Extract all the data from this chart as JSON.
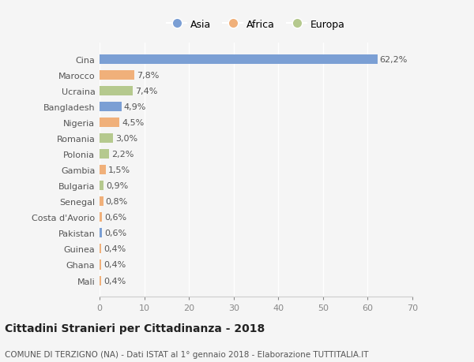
{
  "categories": [
    "Cina",
    "Marocco",
    "Ucraina",
    "Bangladesh",
    "Nigeria",
    "Romania",
    "Polonia",
    "Gambia",
    "Bulgaria",
    "Senegal",
    "Costa d'Avorio",
    "Pakistan",
    "Guinea",
    "Ghana",
    "Mali"
  ],
  "values": [
    62.2,
    7.8,
    7.4,
    4.9,
    4.5,
    3.0,
    2.2,
    1.5,
    0.9,
    0.8,
    0.6,
    0.6,
    0.4,
    0.4,
    0.4
  ],
  "labels": [
    "62,2%",
    "7,8%",
    "7,4%",
    "4,9%",
    "4,5%",
    "3,0%",
    "2,2%",
    "1,5%",
    "0,9%",
    "0,8%",
    "0,6%",
    "0,6%",
    "0,4%",
    "0,4%",
    "0,4%"
  ],
  "colors": [
    "#7b9fd4",
    "#f0b07a",
    "#b5c98e",
    "#7b9fd4",
    "#f0b07a",
    "#b5c98e",
    "#b5c98e",
    "#f0b07a",
    "#b5c98e",
    "#f0b07a",
    "#f0b07a",
    "#7b9fd4",
    "#f0b07a",
    "#f0b07a",
    "#f0b07a"
  ],
  "legend_labels": [
    "Asia",
    "Africa",
    "Europa"
  ],
  "legend_colors": [
    "#7b9fd4",
    "#f0b07a",
    "#b5c98e"
  ],
  "title": "Cittadini Stranieri per Cittadinanza - 2018",
  "subtitle": "COMUNE DI TERZIGNO (NA) - Dati ISTAT al 1° gennaio 2018 - Elaborazione TUTTITALIA.IT",
  "xlim": [
    0,
    70
  ],
  "xticks": [
    0,
    10,
    20,
    30,
    40,
    50,
    60,
    70
  ],
  "background_color": "#f5f5f5",
  "bar_height": 0.6,
  "grid_color": "#ffffff",
  "title_fontsize": 10,
  "subtitle_fontsize": 7.5,
  "tick_fontsize": 8,
  "label_fontsize": 8
}
